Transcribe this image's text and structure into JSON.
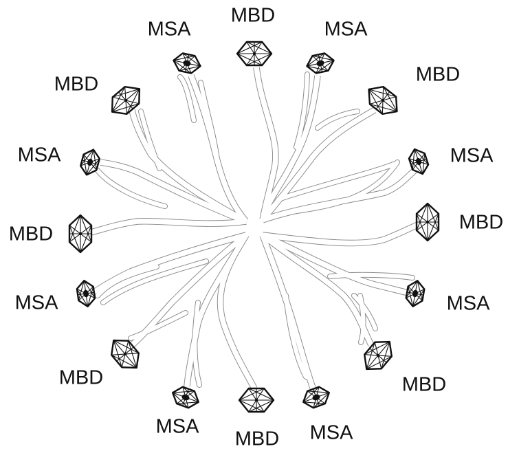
{
  "diagram": {
    "arms": [
      {
        "label": "MBD",
        "kind": "MBD"
      },
      {
        "label": "MSA",
        "kind": "MSA"
      },
      {
        "label": "MBD",
        "kind": "MBD"
      },
      {
        "label": "MSA",
        "kind": "MSA"
      },
      {
        "label": "MBD",
        "kind": "MBD"
      },
      {
        "label": "MSA",
        "kind": "MSA"
      },
      {
        "label": "MBD",
        "kind": "MBD"
      },
      {
        "label": "MSA",
        "kind": "MSA"
      },
      {
        "label": "MBD",
        "kind": "MBD"
      },
      {
        "label": "MSA",
        "kind": "MSA"
      },
      {
        "label": "MBD",
        "kind": "MBD"
      },
      {
        "label": "MSA",
        "kind": "MSA"
      },
      {
        "label": "MBD",
        "kind": "MBD"
      },
      {
        "label": "MSA",
        "kind": "MSA"
      },
      {
        "label": "MBD",
        "kind": "MBD"
      },
      {
        "label": "MSA",
        "kind": "MSA"
      }
    ]
  }
}
